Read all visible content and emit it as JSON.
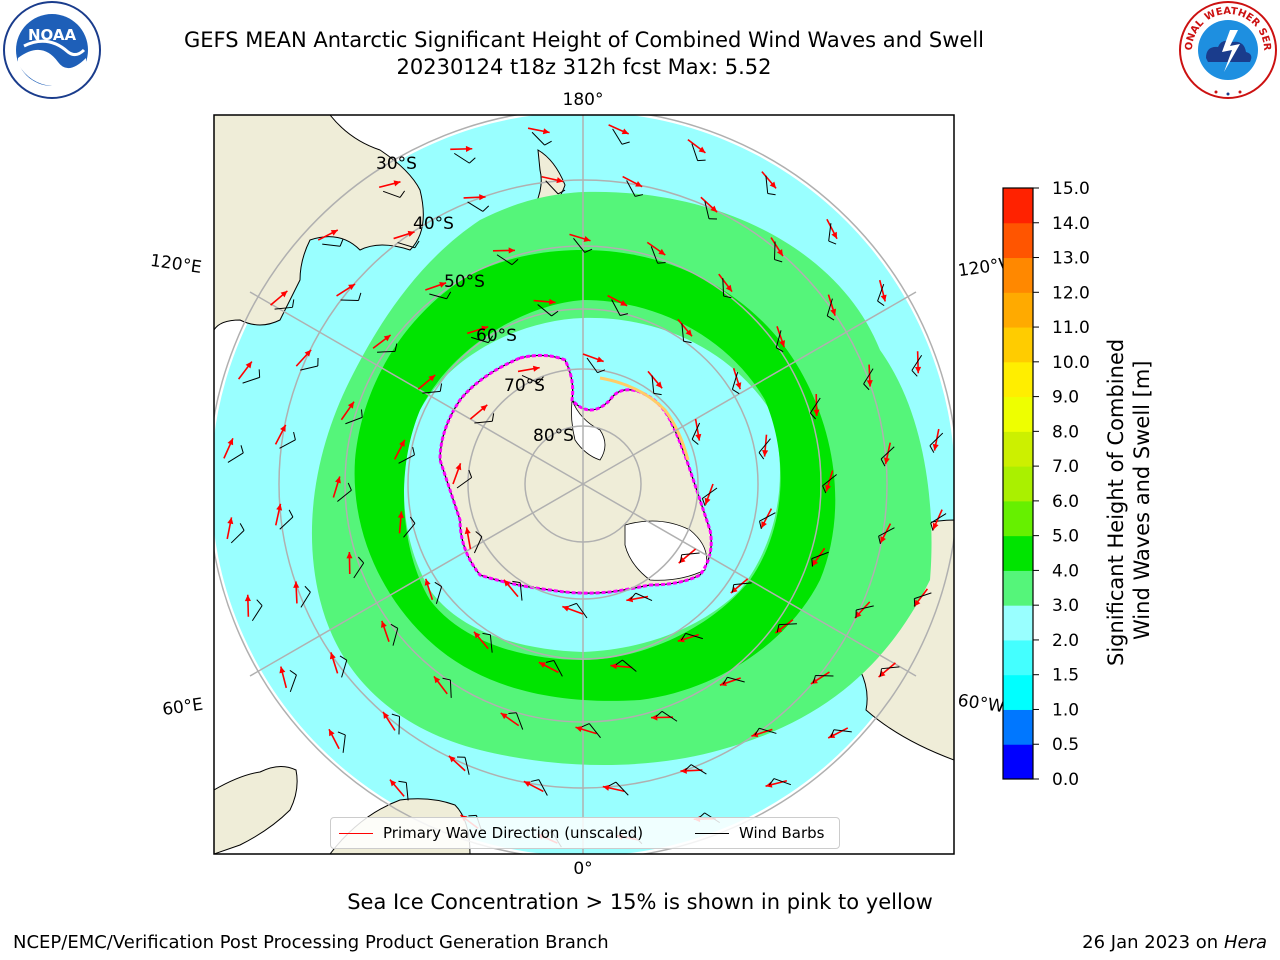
{
  "header": {
    "title_line1": "GEFS MEAN Antarctic Significant Height of Combined Wind Waves and Swell",
    "title_line2": "20230124 t18z 312h fcst   Max: 5.52"
  },
  "logos": {
    "left": "noaa-logo",
    "left_text": "NOAA",
    "right": "nws-logo",
    "right_text": "NATIONAL WEATHER SERVICE"
  },
  "map": {
    "projection": "south-polar-stereographic",
    "longitude_labels": {
      "top": "180°",
      "bottom": "0°",
      "left_upper": "120°E",
      "left_lower": "60°E",
      "right_upper": "120°W",
      "right_lower": "60°W"
    },
    "latitude_labels": [
      "30°S",
      "40°S",
      "50°S",
      "60°S",
      "70°S",
      "80°S"
    ],
    "colors": {
      "land": "#efedd8",
      "ocean_background": "#ffffff",
      "wave_2_3": "#99ffff",
      "wave_3_4": "#55f57a",
      "wave_4_5": "#00e400",
      "wave_1_5_2": "#44ffff",
      "sea_ice_edge": "#ff00ff",
      "arrow": "#ff0000",
      "barb": "#000000"
    }
  },
  "legend": {
    "primary_wave_label": "Primary Wave Direction (unscaled)",
    "wind_barbs_label": "Wind Barbs"
  },
  "colorbar": {
    "title_line1": "Significant Height of Combined",
    "title_line2": "Wind Waves and Swell [m]",
    "ticks": [
      "15.0",
      "14.0",
      "13.0",
      "12.0",
      "11.0",
      "10.0",
      "9.0",
      "8.0",
      "7.0",
      "6.0",
      "5.0",
      "4.0",
      "3.0",
      "2.0",
      "1.5",
      "1.0",
      "0.5",
      "0.0"
    ],
    "colors": [
      "#0000ff",
      "#0077ff",
      "#00ffff",
      "#44ffff",
      "#99ffff",
      "#55f57a",
      "#00e400",
      "#66f000",
      "#aaf000",
      "#ccf000",
      "#eeff00",
      "#ffee00",
      "#ffcc00",
      "#ffaa00",
      "#ff8800",
      "#ff5500",
      "#ff2200"
    ]
  },
  "footer": {
    "note": "Sea Ice Concentration > 15% is shown in pink to yellow",
    "left": "NCEP/EMC/Verification Post Processing Product Generation Branch",
    "right_date": "26 Jan 2023 on ",
    "right_machine": "Hera"
  }
}
